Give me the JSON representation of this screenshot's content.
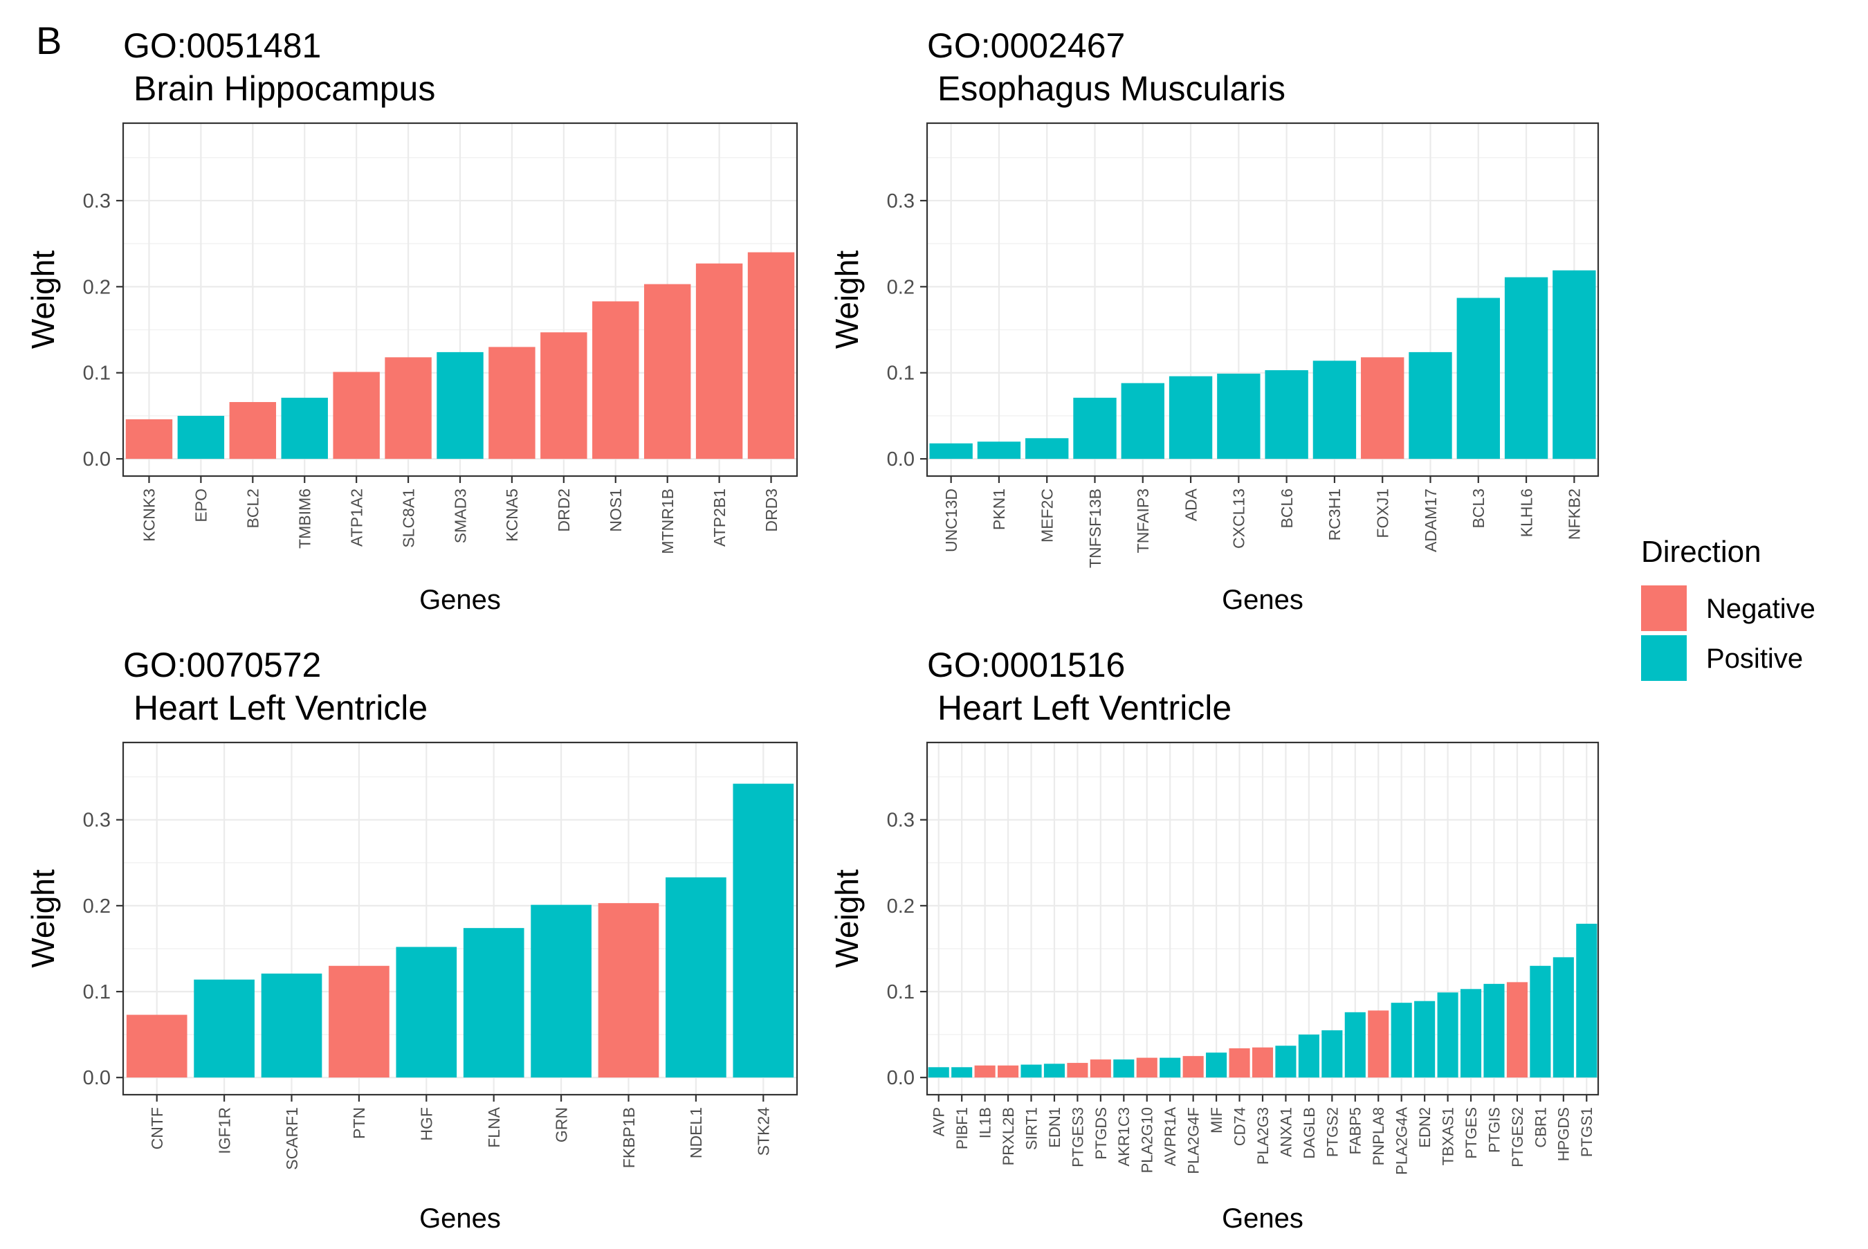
{
  "panel_label": "B",
  "legend": {
    "title": "Direction",
    "items": [
      {
        "label": "Negative",
        "color": "#F8766D"
      },
      {
        "label": "Positive",
        "color": "#00BFC4"
      }
    ]
  },
  "colors": {
    "Negative": "#F8766D",
    "Positive": "#00BFC4"
  },
  "chart_data": [
    {
      "type": "bar",
      "title": "GO:0051481",
      "subtitle": "Brain Hippocampus",
      "xlabel": "Genes",
      "ylabel": "Weight",
      "ylim": [
        -0.02,
        0.39
      ],
      "yticks": [
        "0.0",
        "0.1",
        "0.2",
        "0.3"
      ],
      "grid": true,
      "categories": [
        "KCNK3",
        "EPO",
        "BCL2",
        "TMBIM6",
        "ATP1A2",
        "SLC8A1",
        "SMAD3",
        "KCNA5",
        "DRD2",
        "NOS1",
        "MTNR1B",
        "ATP2B1",
        "DRD3"
      ],
      "values": [
        0.046,
        0.05,
        0.066,
        0.071,
        0.101,
        0.118,
        0.124,
        0.13,
        0.147,
        0.183,
        0.203,
        0.227,
        0.24
      ],
      "direction": [
        "Negative",
        "Positive",
        "Negative",
        "Positive",
        "Negative",
        "Negative",
        "Positive",
        "Negative",
        "Negative",
        "Negative",
        "Negative",
        "Negative",
        "Negative"
      ]
    },
    {
      "type": "bar",
      "title": "GO:0002467",
      "subtitle": "Esophagus Muscularis",
      "xlabel": "Genes",
      "ylabel": "Weight",
      "ylim": [
        -0.02,
        0.39
      ],
      "yticks": [
        "0.0",
        "0.1",
        "0.2",
        "0.3"
      ],
      "grid": true,
      "categories": [
        "UNC13D",
        "PKN1",
        "MEF2C",
        "TNFSF13B",
        "TNFAIP3",
        "ADA",
        "CXCL13",
        "BCL6",
        "RC3H1",
        "FOXJ1",
        "ADAM17",
        "BCL3",
        "KLHL6",
        "NFKB2"
      ],
      "values": [
        0.018,
        0.02,
        0.024,
        0.071,
        0.088,
        0.096,
        0.099,
        0.103,
        0.114,
        0.118,
        0.124,
        0.187,
        0.211,
        0.219
      ],
      "direction": [
        "Positive",
        "Positive",
        "Positive",
        "Positive",
        "Positive",
        "Positive",
        "Positive",
        "Positive",
        "Positive",
        "Negative",
        "Positive",
        "Positive",
        "Positive",
        "Positive"
      ]
    },
    {
      "type": "bar",
      "title": "GO:0070572",
      "subtitle": "Heart Left Ventricle",
      "xlabel": "Genes",
      "ylabel": "Weight",
      "ylim": [
        -0.02,
        0.39
      ],
      "yticks": [
        "0.0",
        "0.1",
        "0.2",
        "0.3"
      ],
      "grid": true,
      "categories": [
        "CNTF",
        "IGF1R",
        "SCARF1",
        "PTN",
        "HGF",
        "FLNA",
        "GRN",
        "FKBP1B",
        "NDEL1",
        "STK24"
      ],
      "values": [
        0.073,
        0.114,
        0.121,
        0.13,
        0.152,
        0.174,
        0.201,
        0.203,
        0.233,
        0.342
      ],
      "direction": [
        "Negative",
        "Positive",
        "Positive",
        "Negative",
        "Positive",
        "Positive",
        "Positive",
        "Negative",
        "Positive",
        "Positive"
      ]
    },
    {
      "type": "bar",
      "title": "GO:0001516",
      "subtitle": "Heart Left Ventricle",
      "xlabel": "Genes",
      "ylabel": "Weight",
      "ylim": [
        -0.02,
        0.39
      ],
      "yticks": [
        "0.0",
        "0.1",
        "0.2",
        "0.3"
      ],
      "grid": true,
      "categories": [
        "AVP",
        "PIBF1",
        "IL1B",
        "PRXL2B",
        "SIRT1",
        "EDN1",
        "PTGES3",
        "PTGDS",
        "AKR1C3",
        "PLA2G10",
        "AVPR1A",
        "PLA2G4F",
        "MIF",
        "CD74",
        "PLA2G3",
        "ANXA1",
        "DAGLB",
        "PTGS2",
        "FABP5",
        "PNPLA8",
        "PLA2G4A",
        "EDN2",
        "TBXAS1",
        "PTGES",
        "PTGIS",
        "PTGES2",
        "CBR1",
        "HPGDS",
        "PTGS1"
      ],
      "values": [
        0.012,
        0.012,
        0.014,
        0.014,
        0.015,
        0.016,
        0.017,
        0.021,
        0.021,
        0.023,
        0.023,
        0.025,
        0.029,
        0.034,
        0.035,
        0.037,
        0.05,
        0.055,
        0.076,
        0.078,
        0.087,
        0.089,
        0.099,
        0.103,
        0.109,
        0.111,
        0.13,
        0.14,
        0.179
      ],
      "direction": [
        "Positive",
        "Positive",
        "Negative",
        "Negative",
        "Positive",
        "Positive",
        "Negative",
        "Negative",
        "Positive",
        "Negative",
        "Positive",
        "Negative",
        "Positive",
        "Negative",
        "Negative",
        "Positive",
        "Positive",
        "Positive",
        "Positive",
        "Negative",
        "Positive",
        "Positive",
        "Positive",
        "Positive",
        "Positive",
        "Negative",
        "Positive",
        "Positive",
        "Positive"
      ]
    }
  ]
}
